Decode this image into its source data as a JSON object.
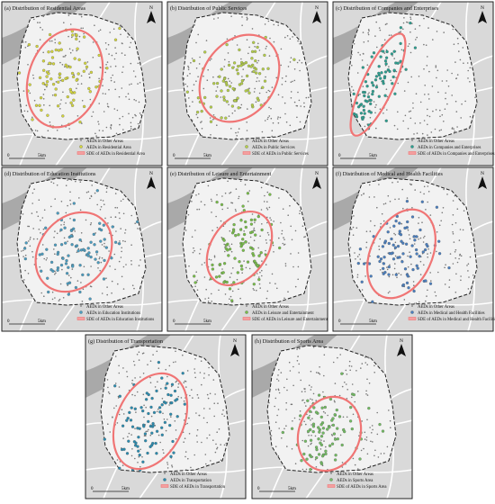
{
  "north": "N",
  "scale": [
    "0",
    "5km"
  ],
  "panels": [
    {
      "title": "(a) Distribution of Residential Areas",
      "color": "#d4d63c",
      "legend": [
        "AEDs in Other Areas",
        "AEDs in Residential Area",
        "SDE of AEDs in Residential Area"
      ]
    },
    {
      "title": "(b) Distribution of Public Services",
      "color": "#b5cf48",
      "legend": [
        "AEDs in Other Areas",
        "AEDs in Public Services",
        "SDE of AEDs in Public Services"
      ]
    },
    {
      "title": "(c) Distribution of Companies and Enterprises",
      "color": "#2aa090",
      "legend": [
        "AEDs in Other Areas",
        "AEDs in Companies and Enterprises",
        "SDE of AEDs in Companies and Enterprises"
      ]
    },
    {
      "title": "(d) Distribution of Education Institutions",
      "color": "#4a9cc0",
      "legend": [
        "AEDs in Other Areas",
        "AEDs in Education Institutions",
        "SDE of AEDs in Education Institutions"
      ]
    },
    {
      "title": "(e) Distribution of Leisure and Entertainment",
      "color": "#78bf48",
      "legend": [
        "AEDs in Other Areas",
        "AEDs in Leisure and Entertainment",
        "SDE of AEDs in Leisure and Entertainment"
      ]
    },
    {
      "title": "(f) Distribution of Medical and Health Facilities",
      "color": "#4a7fc0",
      "legend": [
        "AEDs in Other Areas",
        "AEDs in Medical and Health Facilities",
        "SDE of AEDs in Medical and Health Facilities"
      ]
    },
    {
      "title": "(g) Distribution of Transportation",
      "color": "#2a8cb0",
      "legend": [
        "AEDs in Other Areas",
        "AEDs in Transportation",
        "SDE of AEDs in Transportation"
      ]
    },
    {
      "title": "(h) Distribution of Sports Area",
      "color": "#72bd62",
      "legend": [
        "AEDs in Other Areas",
        "AEDs in Sports Area",
        "SDE of AEDs in Sports Area"
      ]
    }
  ]
}
